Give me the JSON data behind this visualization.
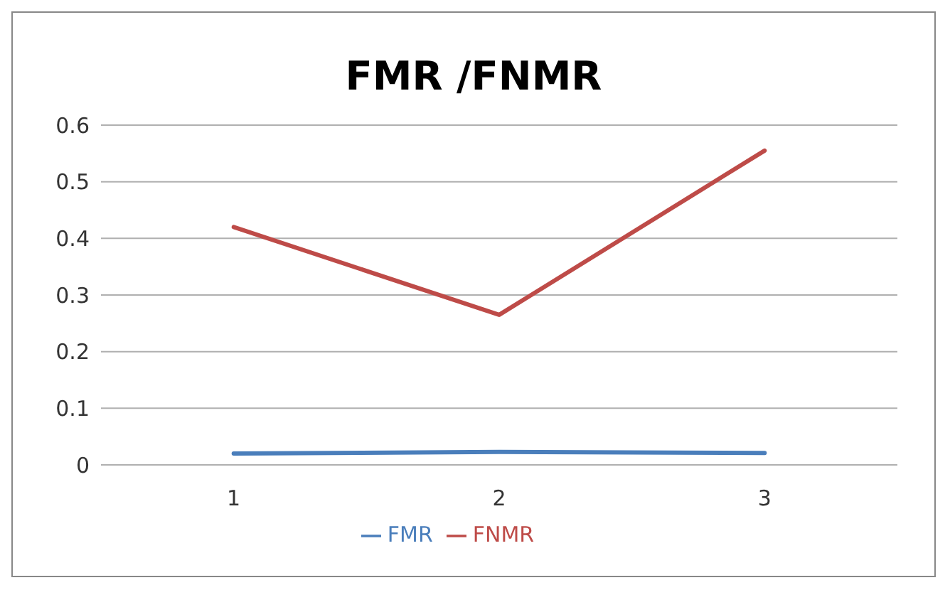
{
  "chart_data": {
    "type": "line",
    "title": "FMR /FNMR",
    "categories": [
      "1",
      "2",
      "3"
    ],
    "series": [
      {
        "name": "FMR",
        "color": "#4a7ebb",
        "values": [
          0.02,
          0.023,
          0.021
        ]
      },
      {
        "name": "FNMR",
        "color": "#be4b48",
        "values": [
          0.42,
          0.265,
          0.555
        ]
      }
    ],
    "ylim": [
      0,
      0.6
    ],
    "yticks": [
      0,
      0.1,
      0.2,
      0.3,
      0.4,
      0.5,
      0.6
    ],
    "grid": "y",
    "legend": "bottom",
    "marker": "none",
    "line_style": "solid"
  }
}
